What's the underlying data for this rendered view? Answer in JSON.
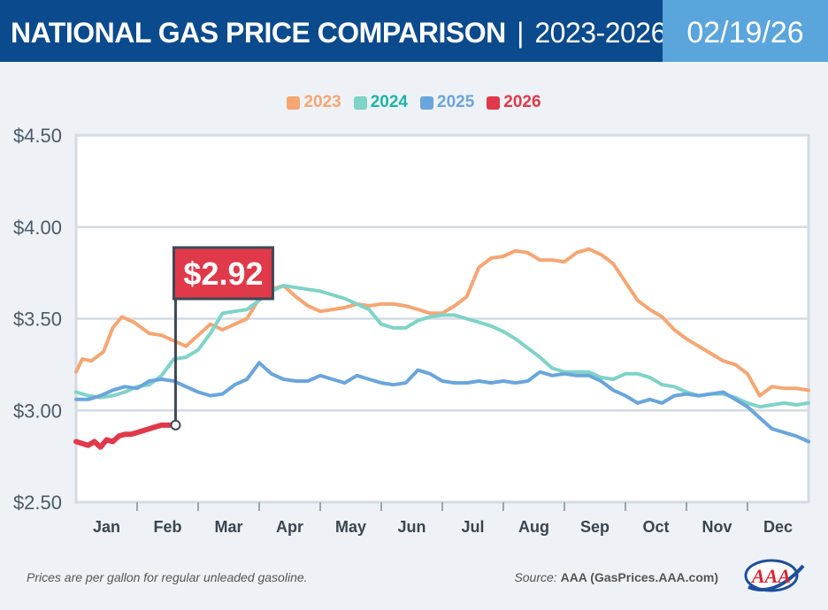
{
  "header": {
    "title_main": "NATIONAL GAS PRICE COMPARISON",
    "title_sep": "|",
    "title_years": "2023-2026",
    "date": "02/19/26"
  },
  "colors": {
    "header_bg": "#0b4a8c",
    "date_bg": "#5aa5dc",
    "s2023": "#f5a673",
    "s2024": "#7fd3c8",
    "s2025": "#6aa5dc",
    "s2026": "#e0394a",
    "legend_2024_text": "#1fb3a3"
  },
  "callout": {
    "label": "$2.92",
    "value": 2.92
  },
  "footer": {
    "note": "Prices are per gallon for regular unleaded gasoline.",
    "source_label": "Source:",
    "source_value": "AAA (GasPrices.AAA.com)",
    "logo_text": "AAA",
    "logo_icon": "aaa-logo-icon"
  },
  "chart_data": {
    "type": "line",
    "title": "",
    "xlabel": "",
    "ylabel": "",
    "x_unit": "month",
    "xlim": [
      1,
      13
    ],
    "ylim": [
      2.5,
      4.5
    ],
    "yticks": [
      2.5,
      3.0,
      3.5,
      4.0,
      4.5
    ],
    "ytick_labels": [
      "$2.50",
      "$3.00",
      "$3.50",
      "$4.00",
      "$4.50"
    ],
    "categories": [
      "Jan",
      "Feb",
      "Mar",
      "Apr",
      "May",
      "Jun",
      "Jul",
      "Aug",
      "Sep",
      "Oct",
      "Nov",
      "Dec"
    ],
    "grid": true,
    "legend": "top-center",
    "series": [
      {
        "name": "2023",
        "x": [
          1.0,
          1.1,
          1.25,
          1.45,
          1.6,
          1.75,
          1.95,
          2.2,
          2.4,
          2.6,
          2.8,
          3.0,
          3.2,
          3.4,
          3.6,
          3.8,
          4.0,
          4.2,
          4.4,
          4.6,
          4.8,
          5.0,
          5.2,
          5.4,
          5.6,
          5.8,
          6.0,
          6.2,
          6.4,
          6.6,
          6.8,
          7.0,
          7.2,
          7.4,
          7.6,
          7.8,
          8.0,
          8.2,
          8.4,
          8.6,
          8.8,
          9.0,
          9.2,
          9.4,
          9.6,
          9.8,
          10.0,
          10.2,
          10.4,
          10.6,
          10.8,
          11.0,
          11.2,
          11.4,
          11.6,
          11.8,
          12.0,
          12.2,
          12.4,
          12.6,
          12.8,
          13.0
        ],
        "values": [
          3.21,
          3.28,
          3.27,
          3.32,
          3.45,
          3.51,
          3.48,
          3.42,
          3.41,
          3.38,
          3.35,
          3.41,
          3.47,
          3.44,
          3.47,
          3.5,
          3.61,
          3.66,
          3.68,
          3.62,
          3.57,
          3.54,
          3.55,
          3.56,
          3.58,
          3.57,
          3.58,
          3.58,
          3.57,
          3.55,
          3.53,
          3.53,
          3.57,
          3.62,
          3.78,
          3.83,
          3.84,
          3.87,
          3.86,
          3.82,
          3.82,
          3.81,
          3.86,
          3.88,
          3.85,
          3.8,
          3.7,
          3.6,
          3.55,
          3.51,
          3.44,
          3.39,
          3.35,
          3.31,
          3.27,
          3.25,
          3.2,
          3.08,
          3.13,
          3.12,
          3.12,
          3.11
        ]
      },
      {
        "name": "2024",
        "x": [
          1.0,
          1.2,
          1.4,
          1.6,
          1.8,
          2.0,
          2.2,
          2.4,
          2.6,
          2.8,
          3.0,
          3.2,
          3.4,
          3.6,
          3.8,
          4.0,
          4.2,
          4.4,
          4.6,
          4.8,
          5.0,
          5.2,
          5.4,
          5.6,
          5.8,
          6.0,
          6.2,
          6.4,
          6.6,
          6.8,
          7.0,
          7.2,
          7.4,
          7.6,
          7.8,
          8.0,
          8.2,
          8.4,
          8.6,
          8.8,
          9.0,
          9.2,
          9.4,
          9.6,
          9.8,
          10.0,
          10.2,
          10.4,
          10.6,
          10.8,
          11.0,
          11.2,
          11.4,
          11.6,
          11.8,
          12.0,
          12.2,
          12.4,
          12.6,
          12.8,
          13.0
        ],
        "values": [
          3.1,
          3.08,
          3.07,
          3.08,
          3.1,
          3.13,
          3.14,
          3.19,
          3.28,
          3.29,
          3.33,
          3.42,
          3.53,
          3.54,
          3.55,
          3.6,
          3.65,
          3.68,
          3.67,
          3.66,
          3.65,
          3.63,
          3.61,
          3.58,
          3.55,
          3.47,
          3.45,
          3.45,
          3.49,
          3.51,
          3.52,
          3.52,
          3.5,
          3.48,
          3.46,
          3.43,
          3.39,
          3.34,
          3.29,
          3.23,
          3.21,
          3.21,
          3.21,
          3.18,
          3.17,
          3.2,
          3.2,
          3.18,
          3.14,
          3.13,
          3.1,
          3.08,
          3.09,
          3.09,
          3.07,
          3.04,
          3.02,
          3.03,
          3.04,
          3.03,
          3.04
        ]
      },
      {
        "name": "2025",
        "x": [
          1.0,
          1.2,
          1.4,
          1.6,
          1.8,
          2.0,
          2.2,
          2.4,
          2.6,
          2.8,
          3.0,
          3.2,
          3.4,
          3.6,
          3.8,
          4.0,
          4.2,
          4.4,
          4.6,
          4.8,
          5.0,
          5.2,
          5.4,
          5.6,
          5.8,
          6.0,
          6.2,
          6.4,
          6.6,
          6.8,
          7.0,
          7.2,
          7.4,
          7.6,
          7.8,
          8.0,
          8.2,
          8.4,
          8.6,
          8.8,
          9.0,
          9.2,
          9.4,
          9.6,
          9.8,
          10.0,
          10.2,
          10.4,
          10.6,
          10.8,
          11.0,
          11.2,
          11.4,
          11.6,
          11.8,
          12.0,
          12.2,
          12.4,
          12.6,
          12.8,
          13.0
        ],
        "values": [
          3.06,
          3.06,
          3.08,
          3.11,
          3.13,
          3.12,
          3.16,
          3.17,
          3.16,
          3.13,
          3.1,
          3.08,
          3.09,
          3.14,
          3.17,
          3.26,
          3.2,
          3.17,
          3.16,
          3.16,
          3.19,
          3.17,
          3.15,
          3.19,
          3.17,
          3.15,
          3.14,
          3.15,
          3.22,
          3.2,
          3.16,
          3.15,
          3.15,
          3.16,
          3.15,
          3.16,
          3.15,
          3.16,
          3.21,
          3.19,
          3.2,
          3.19,
          3.19,
          3.16,
          3.11,
          3.08,
          3.04,
          3.06,
          3.04,
          3.08,
          3.09,
          3.08,
          3.09,
          3.1,
          3.06,
          3.02,
          2.96,
          2.9,
          2.88,
          2.86,
          2.83
        ]
      },
      {
        "name": "2026",
        "x": [
          1.0,
          1.1,
          1.2,
          1.3,
          1.4,
          1.5,
          1.6,
          1.7,
          1.8,
          1.9,
          2.0,
          2.1,
          2.2,
          2.3,
          2.4,
          2.55,
          2.63
        ],
        "values": [
          2.83,
          2.82,
          2.81,
          2.83,
          2.8,
          2.84,
          2.83,
          2.86,
          2.87,
          2.87,
          2.88,
          2.89,
          2.9,
          2.91,
          2.92,
          2.92,
          2.92
        ]
      }
    ]
  }
}
